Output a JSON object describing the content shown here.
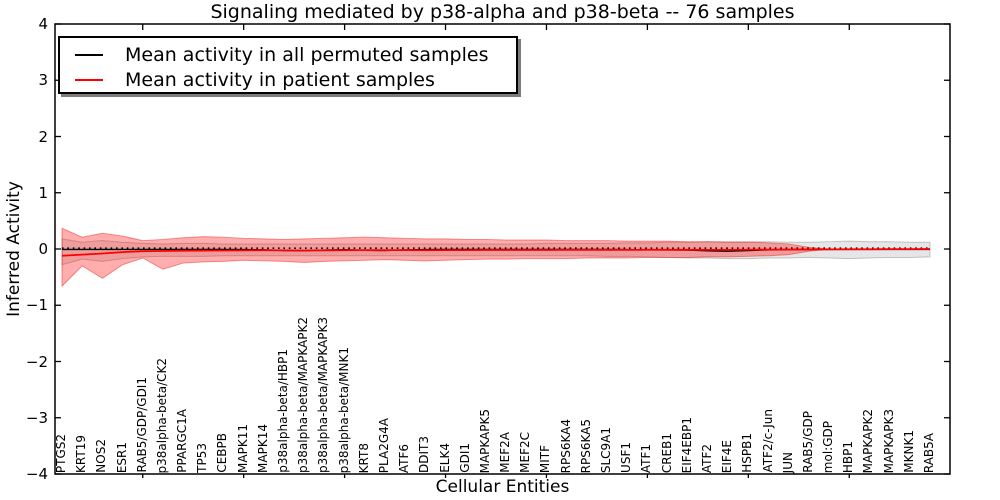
{
  "chart_data": {
    "type": "line",
    "title": "Signaling mediated by p38-alpha and p38-beta -- 76 samples",
    "xlabel": "Cellular Entities",
    "ylabel": "Inferred Activity",
    "ylim": [
      -4,
      4
    ],
    "yticks": [
      4,
      3,
      2,
      1,
      0,
      -1,
      -2,
      -3,
      -4
    ],
    "legend_position": "upper left",
    "grid": false,
    "categories": [
      "PTGS2",
      "KRT19",
      "NOS2",
      "ESR1",
      "RAB5/GDP/GDI1",
      "p38alpha-beta/CK2",
      "PPARGC1A",
      "TP53",
      "CEBPB",
      "MAPK11",
      "MAPK14",
      "p38alpha-beta/HBP1",
      "p38alpha-beta/MAPKAPK2",
      "p38alpha-beta/MAPKAPK3",
      "p38alpha-beta/MNK1",
      "KRT8",
      "PLA2G4A",
      "ATF6",
      "DDIT3",
      "ELK4",
      "GDI1",
      "MAPKAPK5",
      "MEF2A",
      "MEF2C",
      "MITF",
      "RPS6KA4",
      "RPS6KA5",
      "SLC9A1",
      "USF1",
      "ATF1",
      "CREB1",
      "EIF4EBP1",
      "ATF2",
      "EIF4E",
      "HSPB1",
      "ATF2/c-Jun",
      "JUN",
      "RAB5/GDP",
      "mol:GDP",
      "HBP1",
      "MAPKAPK2",
      "MAPKAPK3",
      "MKNK1",
      "RAB5A"
    ],
    "series": [
      {
        "name": "Mean activity in all permuted samples",
        "color": "#000000",
        "values": [
          -0.008,
          -0.008,
          -0.008,
          -0.008,
          -0.008,
          -0.008,
          -0.008,
          -0.008,
          -0.008,
          -0.01,
          -0.014,
          -0.028,
          -0.03,
          -0.018,
          -0.012,
          -0.024,
          -0.028,
          -0.016,
          -0.01,
          -0.008,
          -0.008,
          -0.008,
          -0.008,
          -0.008,
          -0.008,
          -0.008,
          -0.008,
          -0.008,
          -0.01,
          -0.012,
          -0.014,
          -0.02,
          -0.034,
          -0.04,
          -0.028,
          -0.016,
          -0.012,
          -0.008,
          -0.008,
          -0.008,
          -0.008,
          -0.008,
          -0.008,
          -0.008
        ]
      },
      {
        "name": "Mean activity in patient samples",
        "color": "#ff0000",
        "values": [
          -0.12,
          -0.1,
          -0.08,
          -0.055,
          -0.04,
          -0.035,
          -0.03,
          -0.028,
          -0.026,
          -0.024,
          -0.022,
          -0.024,
          -0.026,
          -0.024,
          -0.022,
          -0.02,
          -0.02,
          -0.02,
          -0.022,
          -0.02,
          -0.02,
          -0.018,
          -0.018,
          -0.018,
          -0.018,
          -0.016,
          -0.016,
          -0.016,
          -0.016,
          -0.014,
          -0.014,
          -0.014,
          -0.016,
          -0.016,
          -0.014,
          -0.012,
          -0.01,
          -0.008,
          -0.006,
          -0.004,
          -0.004,
          -0.002,
          -0.002,
          0
        ]
      }
    ],
    "bands": [
      {
        "name": "permuted-std-band",
        "color": "rgba(128,128,128,0.20)",
        "edge": "rgba(100,100,100,0.35)",
        "upper": [
          0.18,
          0.12,
          0.15,
          0.12,
          0.1,
          0.09,
          0.1,
          0.1,
          0.09,
          0.09,
          0.09,
          0.09,
          0.09,
          0.09,
          0.09,
          0.09,
          0.09,
          0.09,
          0.09,
          0.09,
          0.09,
          0.09,
          0.09,
          0.09,
          0.1,
          0.1,
          0.1,
          0.1,
          0.11,
          0.11,
          0.12,
          0.12,
          0.13,
          0.13,
          0.13,
          0.13,
          0.12,
          0.12,
          0.13,
          0.14,
          0.13,
          0.13,
          0.12,
          0.12
        ],
        "lower": [
          -0.28,
          -0.18,
          -0.22,
          -0.17,
          -0.14,
          -0.13,
          -0.13,
          -0.13,
          -0.12,
          -0.12,
          -0.12,
          -0.12,
          -0.12,
          -0.12,
          -0.12,
          -0.12,
          -0.12,
          -0.12,
          -0.12,
          -0.12,
          -0.12,
          -0.12,
          -0.12,
          -0.12,
          -0.12,
          -0.12,
          -0.12,
          -0.13,
          -0.13,
          -0.14,
          -0.15,
          -0.16,
          -0.16,
          -0.17,
          -0.17,
          -0.16,
          -0.16,
          -0.15,
          -0.16,
          -0.17,
          -0.16,
          -0.15,
          -0.15,
          -0.14
        ]
      },
      {
        "name": "patient-std-band",
        "color": "rgba(255,0,0,0.32)",
        "edge": "rgba(230,0,0,0.40)",
        "upper": [
          0.37,
          0.21,
          0.28,
          0.23,
          0.15,
          0.17,
          0.2,
          0.22,
          0.21,
          0.19,
          0.18,
          0.17,
          0.18,
          0.19,
          0.2,
          0.21,
          0.2,
          0.19,
          0.18,
          0.18,
          0.17,
          0.17,
          0.16,
          0.16,
          0.16,
          0.15,
          0.15,
          0.15,
          0.14,
          0.14,
          0.14,
          0.13,
          0.13,
          0.12,
          0.12,
          0.11,
          0.09,
          0.03,
          0,
          null,
          null,
          null,
          null,
          null
        ],
        "lower": [
          -0.66,
          -0.3,
          -0.52,
          -0.28,
          -0.16,
          -0.36,
          -0.25,
          -0.23,
          -0.22,
          -0.2,
          -0.21,
          -0.22,
          -0.24,
          -0.22,
          -0.21,
          -0.2,
          -0.19,
          -0.2,
          -0.21,
          -0.2,
          -0.19,
          -0.18,
          -0.18,
          -0.17,
          -0.17,
          -0.17,
          -0.16,
          -0.16,
          -0.16,
          -0.15,
          -0.15,
          -0.15,
          -0.14,
          -0.14,
          -0.13,
          -0.12,
          -0.1,
          -0.04,
          0,
          null,
          null,
          null,
          null,
          null
        ]
      }
    ],
    "dotted_reference": 0.015
  }
}
